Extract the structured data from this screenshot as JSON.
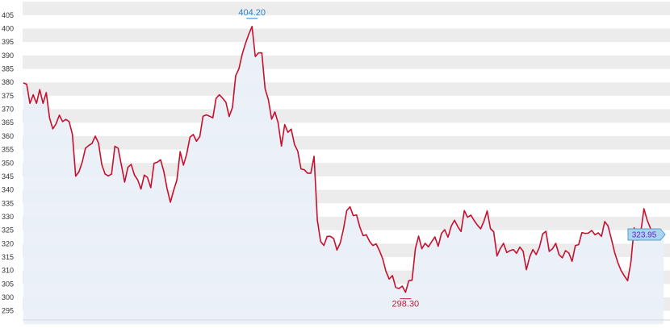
{
  "chart_data": {
    "type": "area",
    "title": "",
    "xlabel": "",
    "ylabel": "",
    "ylim": [
      290,
      410
    ],
    "y_ticks": [
      295,
      300,
      305,
      310,
      315,
      320,
      325,
      330,
      335,
      340,
      345,
      350,
      355,
      360,
      365,
      370,
      375,
      380,
      385,
      390,
      395,
      400,
      405
    ],
    "y_tick_labels": [
      "295",
      "300",
      "305",
      "310",
      "315",
      "320",
      "325",
      "330",
      "335",
      "340",
      "345",
      "350",
      "355",
      "360",
      "365",
      "370",
      "375",
      "380",
      "385",
      "390",
      "395",
      "400",
      "405"
    ],
    "grid": "alternating horizontal bands",
    "legend": "none",
    "colors": {
      "line": "#c8102e",
      "fill_top": "#4f7fb5",
      "fill_bottom": "#e6eef7",
      "band": "#ececec"
    },
    "series": [
      {
        "values": [
          379.8,
          379.3,
          372.2,
          375.4,
          372.2,
          377.3,
          372.2,
          376.2,
          366.8,
          362.7,
          364.6,
          367.8,
          365.4,
          366.2,
          365.4,
          360.7,
          345.1,
          346.7,
          350.3,
          355.5,
          356.5,
          357.3,
          360.0,
          357.4,
          349.4,
          345.9,
          345.2,
          345.9,
          356.2,
          355.5,
          349.2,
          342.9,
          348.4,
          349.5,
          345.5,
          343.7,
          340.3,
          345.5,
          344.6,
          340.8,
          349.9,
          350.3,
          351.2,
          346.8,
          340.4,
          335.4,
          339.8,
          343.7,
          354.2,
          349.2,
          353.4,
          359.6,
          360.6,
          358.1,
          359.8,
          367.4,
          367.9,
          367.4,
          366.8,
          374.1,
          375.4,
          374.1,
          372.6,
          367.3,
          370.6,
          382.5,
          385.1,
          390.5,
          394.5,
          397.9,
          400.8,
          389.6,
          391.0,
          391.0,
          377.6,
          373.6,
          366.3,
          369.0,
          364.9,
          356.3,
          364.3,
          361.4,
          362.6,
          356.9,
          354.4,
          347.8,
          347.5,
          346.2,
          346.2,
          352.5,
          328.7,
          320.8,
          319.3,
          322.7,
          322.7,
          321.9,
          317.6,
          320.2,
          325.4,
          332.3,
          333.7,
          330.4,
          330.7,
          326.2,
          323.0,
          323.3,
          320.8,
          319.3,
          319.9,
          317.4,
          314.4,
          309.7,
          306.8,
          308.1,
          303.7,
          303.3,
          304.2,
          301.9,
          306.2,
          306.4,
          318.0,
          322.8,
          318.1,
          320.1,
          318.8,
          320.7,
          322.5,
          319.0,
          323.8,
          325.2,
          322.4,
          326.5,
          328.7,
          326.3,
          324.5,
          332.3,
          329.8,
          330.6,
          328.6,
          326.9,
          325.5,
          328.3,
          332.2,
          325.6,
          324.4,
          315.4,
          318.1,
          320.1,
          316.7,
          317.4,
          317.8,
          316.4,
          318.7,
          317.2,
          310.3,
          315.0,
          317.8,
          315.9,
          318.7,
          323.6,
          324.6,
          317.1,
          318.1,
          320.1,
          315.9,
          314.7,
          317.4,
          316.5,
          313.4,
          319.3,
          319.6,
          324.1,
          323.8,
          323.9,
          324.9,
          323.3,
          324.0,
          322.7,
          328.2,
          326.6,
          321.9,
          316.8,
          313.0,
          310.0,
          308.0,
          306.2,
          313.0,
          325.9,
          321.3,
          323.9,
          333.0,
          328.7,
          325.7,
          323.0,
          321.6,
          321.8,
          323.4
        ]
      }
    ],
    "annotations": {
      "max_label": "404.20",
      "min_label": "298.30",
      "last_label": "323.95"
    }
  }
}
